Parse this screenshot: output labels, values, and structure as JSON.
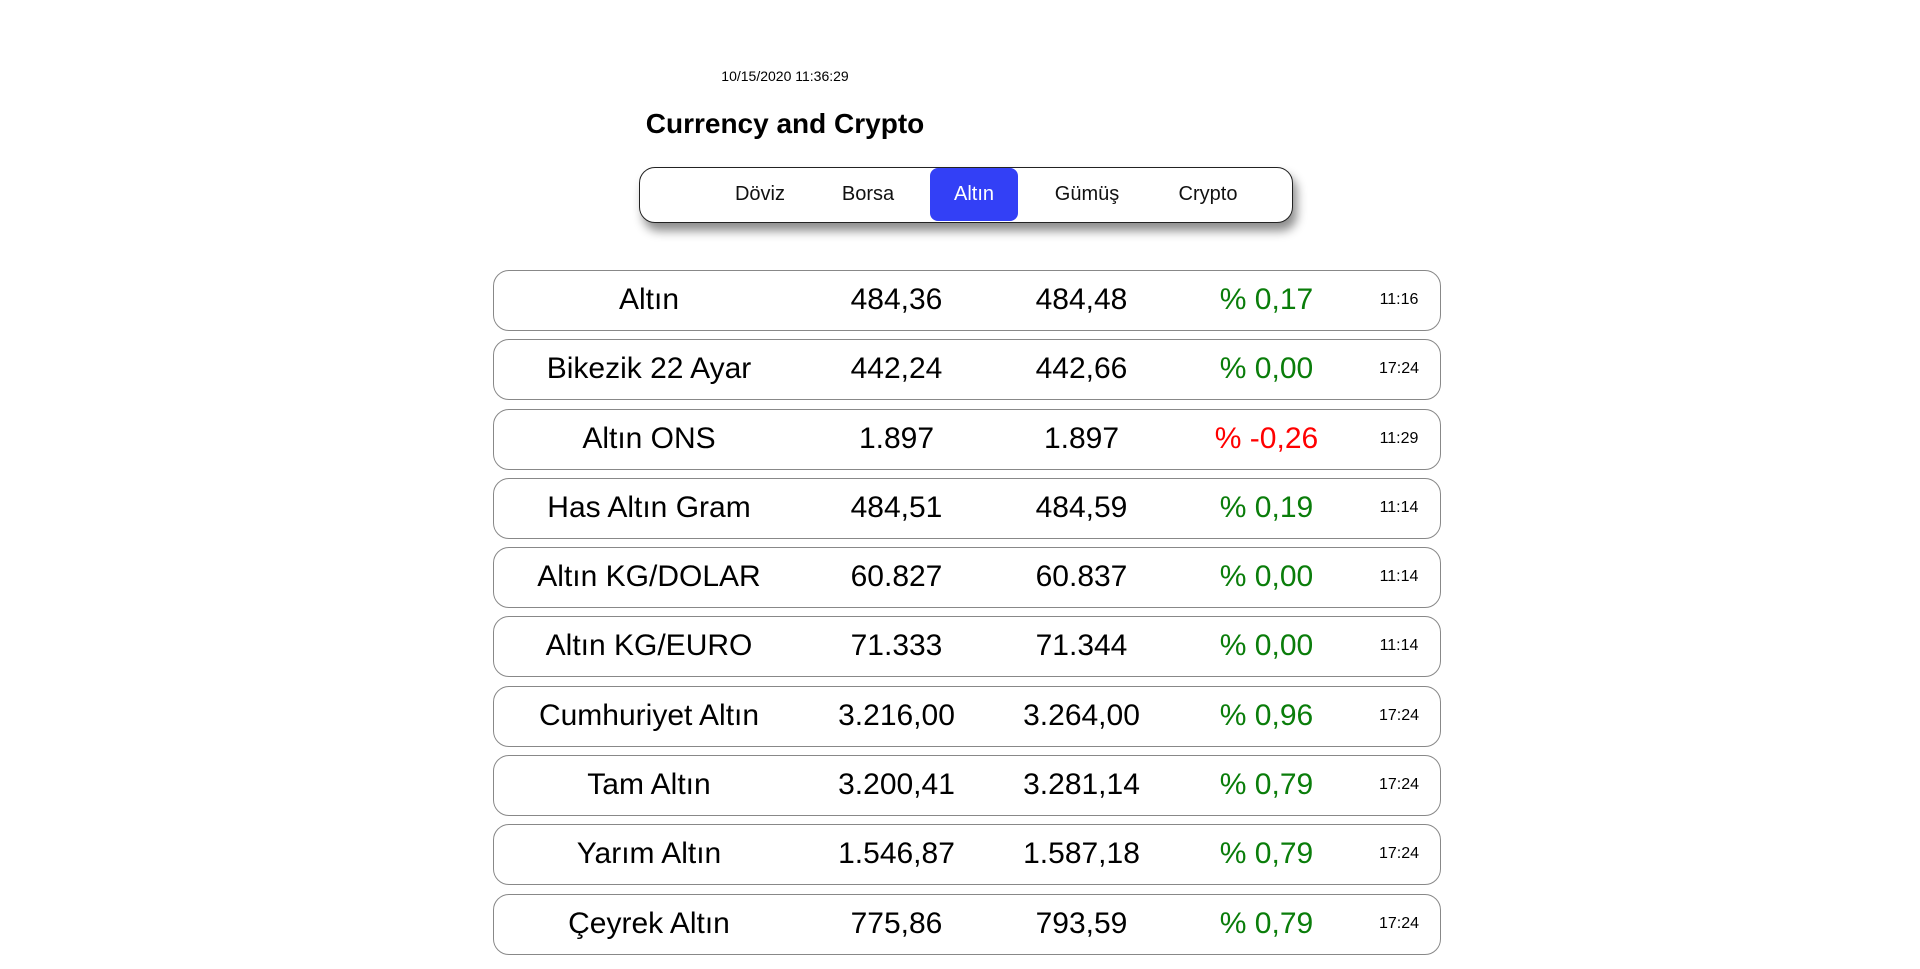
{
  "header": {
    "timestamp": "10/15/2020 11:36:29",
    "title": "Currency and Crypto"
  },
  "tabs": [
    {
      "label": "Döviz",
      "active": false
    },
    {
      "label": "Borsa",
      "active": false
    },
    {
      "label": "Altın",
      "active": true
    },
    {
      "label": "Gümüş",
      "active": false
    },
    {
      "label": "Crypto",
      "active": false
    }
  ],
  "colors": {
    "active_tab": "#3340f6",
    "positive": "#0a7d0a",
    "negative": "#ff0000"
  },
  "rows": [
    {
      "name": "Altın",
      "buy": "484,36",
      "sell": "484,48",
      "change": "% 0,17",
      "trend": "positive",
      "time": "11:16"
    },
    {
      "name": "Bikezik 22 Ayar",
      "buy": "442,24",
      "sell": "442,66",
      "change": "% 0,00",
      "trend": "positive",
      "time": "17:24"
    },
    {
      "name": "Altın ONS",
      "buy": "1.897",
      "sell": "1.897",
      "change": "% -0,26",
      "trend": "negative",
      "time": "11:29"
    },
    {
      "name": "Has Altın Gram",
      "buy": "484,51",
      "sell": "484,59",
      "change": "% 0,19",
      "trend": "positive",
      "time": "11:14"
    },
    {
      "name": "Altın KG/DOLAR",
      "buy": "60.827",
      "sell": "60.837",
      "change": "% 0,00",
      "trend": "positive",
      "time": "11:14"
    },
    {
      "name": "Altın KG/EURO",
      "buy": "71.333",
      "sell": "71.344",
      "change": "% 0,00",
      "trend": "positive",
      "time": "11:14"
    },
    {
      "name": "Cumhuriyet Altın",
      "buy": "3.216,00",
      "sell": "3.264,00",
      "change": "% 0,96",
      "trend": "positive",
      "time": "17:24"
    },
    {
      "name": "Tam Altın",
      "buy": "3.200,41",
      "sell": "3.281,14",
      "change": "% 0,79",
      "trend": "positive",
      "time": "17:24"
    },
    {
      "name": "Yarım Altın",
      "buy": "1.546,87",
      "sell": "1.587,18",
      "change": "% 0,79",
      "trend": "positive",
      "time": "17:24"
    },
    {
      "name": "Çeyrek Altın",
      "buy": "775,86",
      "sell": "793,59",
      "change": "% 0,79",
      "trend": "positive",
      "time": "17:24"
    }
  ]
}
